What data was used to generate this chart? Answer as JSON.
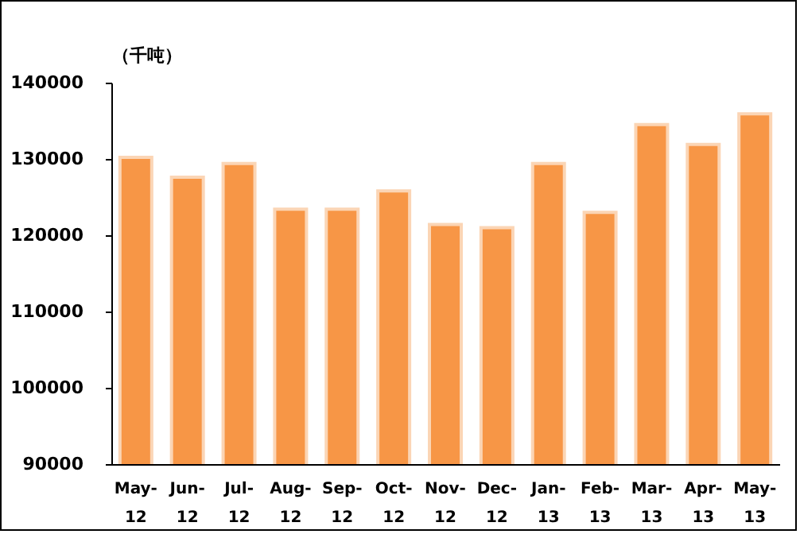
{
  "chart_data": {
    "type": "bar",
    "ylabel": "（千吨）",
    "categories": [
      "May-12",
      "Jun-12",
      "Jul-12",
      "Aug-12",
      "Sep-12",
      "Oct-12",
      "Nov-12",
      "Dec-12",
      "Jan-13",
      "Feb-13",
      "Mar-13",
      "Apr-13",
      "May-13"
    ],
    "values": [
      130200,
      127600,
      129400,
      123400,
      123400,
      125800,
      121400,
      121000,
      129400,
      123000,
      134500,
      131900,
      135900
    ],
    "color": "#f79646",
    "ylim": [
      90000,
      140000
    ],
    "yticks": [
      90000,
      100000,
      110000,
      120000,
      130000,
      140000
    ],
    "grid": false
  }
}
